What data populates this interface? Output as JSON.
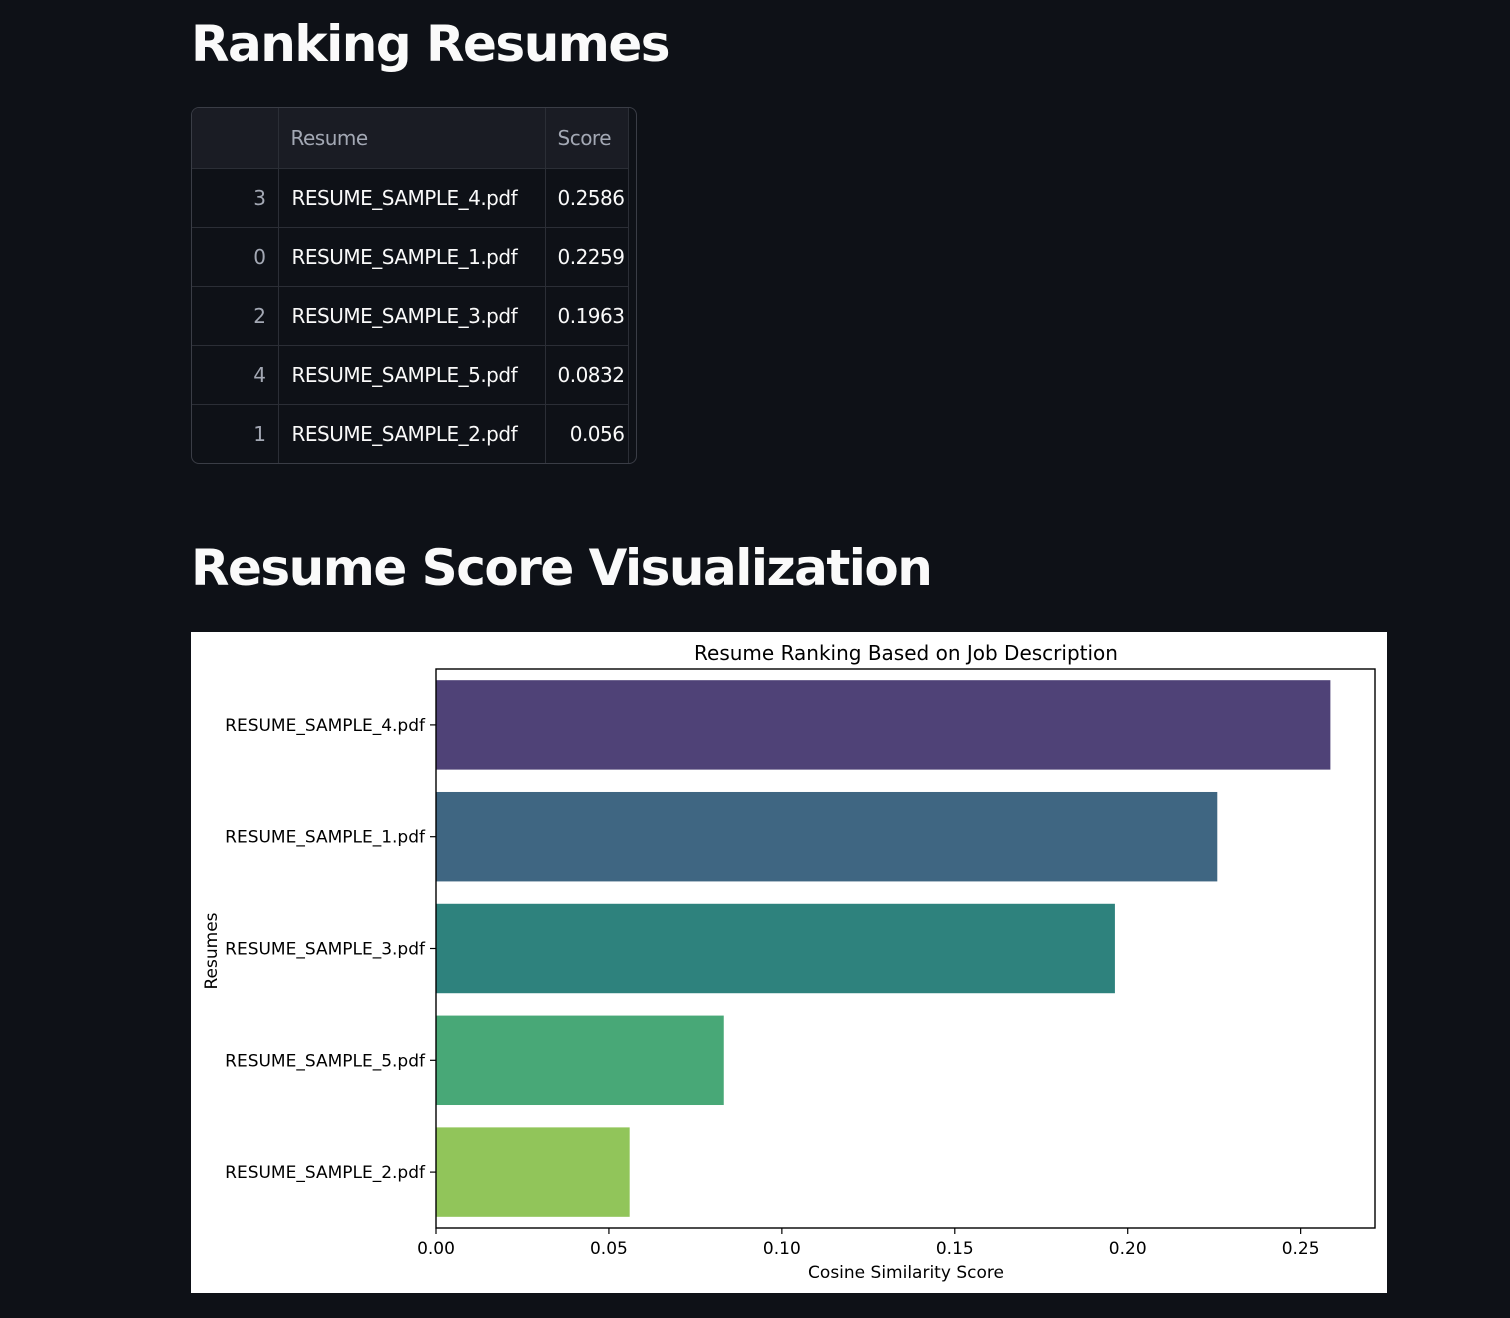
{
  "sections": {
    "ranking_title": "Ranking Resumes",
    "viz_title": "Resume Score Visualization"
  },
  "table": {
    "columns": [
      "",
      "Resume",
      "Score"
    ],
    "rows": [
      {
        "index": "3",
        "resume": "RESUME_SAMPLE_4.pdf",
        "score": "0.2586"
      },
      {
        "index": "0",
        "resume": "RESUME_SAMPLE_1.pdf",
        "score": "0.2259"
      },
      {
        "index": "2",
        "resume": "RESUME_SAMPLE_3.pdf",
        "score": "0.1963"
      },
      {
        "index": "4",
        "resume": "RESUME_SAMPLE_5.pdf",
        "score": "0.0832"
      },
      {
        "index": "1",
        "resume": "RESUME_SAMPLE_2.pdf",
        "score": "0.056"
      }
    ]
  },
  "chart_data": {
    "type": "bar",
    "orientation": "horizontal",
    "title": "Resume Ranking Based on Job Description",
    "xlabel": "Cosine Similarity Score",
    "ylabel": "Resumes",
    "categories": [
      "RESUME_SAMPLE_4.pdf",
      "RESUME_SAMPLE_1.pdf",
      "RESUME_SAMPLE_3.pdf",
      "RESUME_SAMPLE_5.pdf",
      "RESUME_SAMPLE_2.pdf"
    ],
    "values": [
      0.2586,
      0.2259,
      0.1963,
      0.0832,
      0.056
    ],
    "xticks": [
      "0.00",
      "0.05",
      "0.10",
      "0.15",
      "0.20",
      "0.25"
    ],
    "xlim": [
      0,
      0.2715
    ],
    "colors": [
      "#4f4277",
      "#3f6682",
      "#2e827d",
      "#48a877",
      "#91c55a"
    ],
    "grid": false,
    "legend": "none"
  }
}
